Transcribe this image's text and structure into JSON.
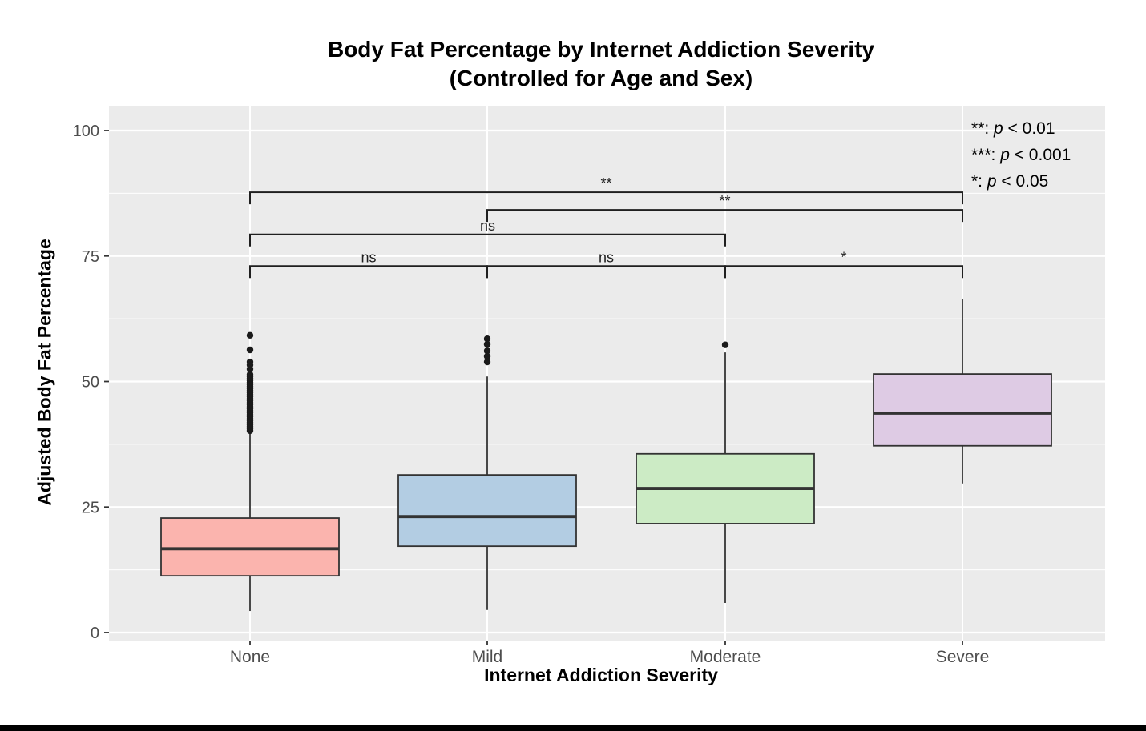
{
  "chart_data": {
    "type": "boxplot",
    "title_line1": "Body Fat Percentage by Internet Addiction Severity",
    "title_line2": "(Controlled for Age and Sex)",
    "xlabel": "Internet Addiction Severity",
    "ylabel": "Adjusted Body Fat Percentage",
    "categories": [
      "None",
      "Mild",
      "Moderate",
      "Severe"
    ],
    "y_ticks": [
      0,
      25,
      50,
      75,
      100
    ],
    "y_minor_ticks": [
      12.5,
      37.5,
      62.5,
      87.5
    ],
    "ylim": [
      -1.6,
      104.8
    ],
    "grid": true,
    "legend_position": "top-right",
    "colors": {
      "panel_bg": "#EBEBEB",
      "grid": "#FFFFFF",
      "tick_label": "#4D4D4D",
      "box_border": "#333333",
      "outlier": "#1A1A1A",
      "bracket": "#1F1F1F",
      "title": "#000000",
      "bottom_bar": "#000000"
    },
    "boxes": [
      {
        "category": "None",
        "fill": "#FBB4AE",
        "q1": 11.3,
        "median": 16.7,
        "q3": 22.8,
        "whisker_low": 4.3,
        "whisker_high": 39.8,
        "outliers": [
          40.2,
          40.6,
          41.0,
          41.4,
          41.8,
          42.2,
          42.6,
          43.0,
          43.4,
          43.8,
          44.2,
          44.6,
          45.0,
          45.4,
          45.8,
          46.2,
          46.6,
          47.0,
          47.4,
          47.8,
          48.2,
          48.6,
          49.0,
          49.4,
          49.8,
          50.2,
          50.6,
          51.0,
          51.4,
          52.5,
          53.3,
          53.9,
          56.3,
          59.2
        ]
      },
      {
        "category": "Mild",
        "fill": "#B3CDE3",
        "q1": 17.2,
        "median": 23.1,
        "q3": 31.4,
        "whisker_low": 4.5,
        "whisker_high": 51.0,
        "outliers": [
          53.9,
          55.0,
          56.1,
          57.4,
          58.5
        ]
      },
      {
        "category": "Moderate",
        "fill": "#CCEBC5",
        "q1": 21.7,
        "median": 28.7,
        "q3": 35.6,
        "whisker_low": 5.9,
        "whisker_high": 55.8,
        "outliers": [
          57.3
        ]
      },
      {
        "category": "Severe",
        "fill": "#DECBE4",
        "q1": 37.2,
        "median": 43.7,
        "q3": 51.5,
        "whisker_low": 29.7,
        "whisker_high": 66.5,
        "outliers": []
      }
    ],
    "comparisons": [
      {
        "group1": "None",
        "group2": "Mild",
        "label": "ns",
        "y": 73.0
      },
      {
        "group1": "Mild",
        "group2": "Moderate",
        "label": "ns",
        "y": 73.0
      },
      {
        "group1": "Moderate",
        "group2": "Severe",
        "label": "*",
        "y": 73.0
      },
      {
        "group1": "None",
        "group2": "Moderate",
        "label": "ns",
        "y": 79.3
      },
      {
        "group1": "Mild",
        "group2": "Severe",
        "label": "**",
        "y": 84.2
      },
      {
        "group1": "None",
        "group2": "Severe",
        "label": "**",
        "y": 87.7
      }
    ],
    "legend": [
      {
        "stars": "**",
        "threshold": "< 0.01"
      },
      {
        "stars": "***",
        "threshold": "< 0.001"
      },
      {
        "stars": "*",
        "threshold": "< 0.05"
      }
    ]
  }
}
